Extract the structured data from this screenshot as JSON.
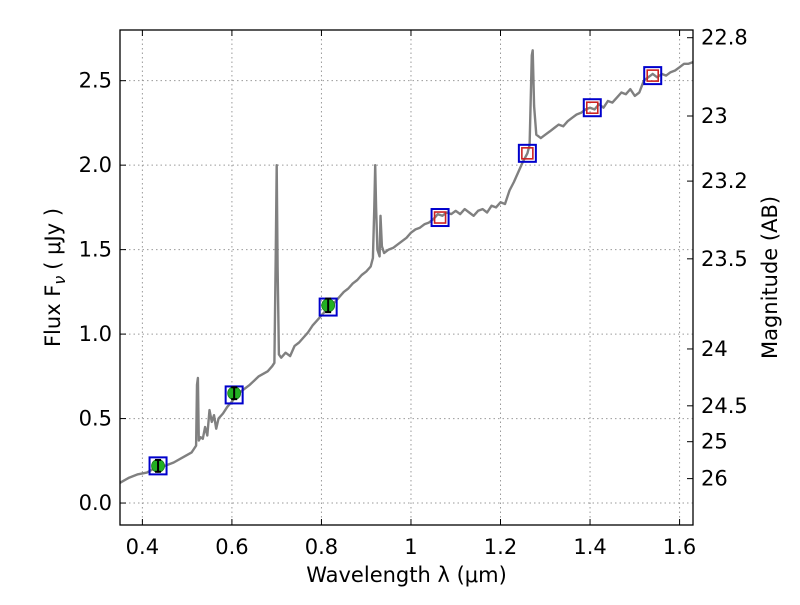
{
  "chart_data": {
    "type": "line",
    "xlabel": "Wavelength  λ (μm)",
    "ylabel_left": "Flux  F",
    "ylabel_left_sub": "ν",
    "ylabel_left_unit": "( μJy )",
    "ylabel_right": "Magnitude (AB)",
    "xlim": [
      0.35,
      1.63
    ],
    "ylim": [
      -0.13,
      2.8
    ],
    "x_ticks": [
      {
        "value": 0.4,
        "label": "0.4"
      },
      {
        "value": 0.6,
        "label": "0.6"
      },
      {
        "value": 0.8,
        "label": "0.8"
      },
      {
        "value": 1.0,
        "label": "1"
      },
      {
        "value": 1.2,
        "label": "1.2"
      },
      {
        "value": 1.4,
        "label": "1.4"
      },
      {
        "value": 1.6,
        "label": "1.6"
      }
    ],
    "y_ticks": [
      {
        "value": 0.0,
        "label": "0.0"
      },
      {
        "value": 0.5,
        "label": "0.5"
      },
      {
        "value": 1.0,
        "label": "1.0"
      },
      {
        "value": 1.5,
        "label": "1.5"
      },
      {
        "value": 2.0,
        "label": "2.0"
      },
      {
        "value": 2.5,
        "label": "2.5"
      }
    ],
    "right_ticks": [
      {
        "value": 22.8,
        "label": "22.8"
      },
      {
        "value": 23.0,
        "label": "23"
      },
      {
        "value": 23.2,
        "label": "23.2"
      },
      {
        "value": 23.5,
        "label": "23.5"
      },
      {
        "value": 24.0,
        "label": "24"
      },
      {
        "value": 24.5,
        "label": "24.5"
      },
      {
        "value": 25.0,
        "label": "25"
      },
      {
        "value": 26.0,
        "label": "26"
      }
    ],
    "grid": true,
    "spectrum": {
      "color": "#808080",
      "points": [
        [
          0.35,
          0.12
        ],
        [
          0.37,
          0.15
        ],
        [
          0.39,
          0.17
        ],
        [
          0.41,
          0.18
        ],
        [
          0.43,
          0.21
        ],
        [
          0.45,
          0.22
        ],
        [
          0.47,
          0.24
        ],
        [
          0.49,
          0.27
        ],
        [
          0.51,
          0.3
        ],
        [
          0.515,
          0.32
        ],
        [
          0.52,
          0.34
        ],
        [
          0.522,
          0.7
        ],
        [
          0.524,
          0.74
        ],
        [
          0.526,
          0.37
        ],
        [
          0.53,
          0.39
        ],
        [
          0.535,
          0.38
        ],
        [
          0.54,
          0.45
        ],
        [
          0.545,
          0.4
        ],
        [
          0.55,
          0.55
        ],
        [
          0.555,
          0.48
        ],
        [
          0.56,
          0.52
        ],
        [
          0.565,
          0.44
        ],
        [
          0.57,
          0.5
        ],
        [
          0.58,
          0.53
        ],
        [
          0.59,
          0.57
        ],
        [
          0.6,
          0.6
        ],
        [
          0.61,
          0.64
        ],
        [
          0.62,
          0.66
        ],
        [
          0.64,
          0.7
        ],
        [
          0.66,
          0.75
        ],
        [
          0.68,
          0.78
        ],
        [
          0.69,
          0.81
        ],
        [
          0.695,
          0.83
        ],
        [
          0.698,
          1.5
        ],
        [
          0.7,
          2.0
        ],
        [
          0.702,
          1.4
        ],
        [
          0.705,
          0.88
        ],
        [
          0.71,
          0.86
        ],
        [
          0.72,
          0.89
        ],
        [
          0.73,
          0.87
        ],
        [
          0.74,
          0.93
        ],
        [
          0.75,
          0.95
        ],
        [
          0.76,
          0.98
        ],
        [
          0.77,
          1.01
        ],
        [
          0.78,
          1.05
        ],
        [
          0.79,
          1.08
        ],
        [
          0.8,
          1.11
        ],
        [
          0.81,
          1.14
        ],
        [
          0.82,
          1.16
        ],
        [
          0.83,
          1.19
        ],
        [
          0.84,
          1.22
        ],
        [
          0.85,
          1.25
        ],
        [
          0.86,
          1.27
        ],
        [
          0.87,
          1.3
        ],
        [
          0.88,
          1.32
        ],
        [
          0.89,
          1.35
        ],
        [
          0.9,
          1.37
        ],
        [
          0.91,
          1.4
        ],
        [
          0.915,
          1.45
        ],
        [
          0.918,
          1.75
        ],
        [
          0.92,
          2.0
        ],
        [
          0.922,
          1.75
        ],
        [
          0.925,
          1.5
        ],
        [
          0.93,
          1.46
        ],
        [
          0.932,
          1.7
        ],
        [
          0.935,
          1.52
        ],
        [
          0.94,
          1.48
        ],
        [
          0.95,
          1.5
        ],
        [
          0.96,
          1.51
        ],
        [
          0.97,
          1.53
        ],
        [
          0.98,
          1.55
        ],
        [
          0.99,
          1.57
        ],
        [
          1.0,
          1.6
        ],
        [
          1.01,
          1.62
        ],
        [
          1.02,
          1.63
        ],
        [
          1.03,
          1.65
        ],
        [
          1.04,
          1.66
        ],
        [
          1.05,
          1.68
        ],
        [
          1.06,
          1.71
        ],
        [
          1.07,
          1.7
        ],
        [
          1.08,
          1.72
        ],
        [
          1.09,
          1.71
        ],
        [
          1.1,
          1.73
        ],
        [
          1.11,
          1.71
        ],
        [
          1.12,
          1.74
        ],
        [
          1.13,
          1.72
        ],
        [
          1.14,
          1.7
        ],
        [
          1.15,
          1.73
        ],
        [
          1.16,
          1.74
        ],
        [
          1.17,
          1.72
        ],
        [
          1.18,
          1.76
        ],
        [
          1.19,
          1.75
        ],
        [
          1.2,
          1.78
        ],
        [
          1.21,
          1.77
        ],
        [
          1.22,
          1.85
        ],
        [
          1.23,
          1.9
        ],
        [
          1.24,
          1.96
        ],
        [
          1.25,
          2.02
        ],
        [
          1.26,
          2.07
        ],
        [
          1.265,
          2.12
        ],
        [
          1.27,
          2.65
        ],
        [
          1.272,
          2.68
        ],
        [
          1.275,
          2.35
        ],
        [
          1.28,
          2.18
        ],
        [
          1.29,
          2.16
        ],
        [
          1.3,
          2.18
        ],
        [
          1.31,
          2.2
        ],
        [
          1.32,
          2.22
        ],
        [
          1.33,
          2.24
        ],
        [
          1.34,
          2.23
        ],
        [
          1.35,
          2.26
        ],
        [
          1.36,
          2.28
        ],
        [
          1.37,
          2.3
        ],
        [
          1.38,
          2.31
        ],
        [
          1.39,
          2.33
        ],
        [
          1.4,
          2.34
        ],
        [
          1.41,
          2.33
        ],
        [
          1.42,
          2.36
        ],
        [
          1.43,
          2.34
        ],
        [
          1.44,
          2.38
        ],
        [
          1.45,
          2.37
        ],
        [
          1.46,
          2.4
        ],
        [
          1.47,
          2.43
        ],
        [
          1.48,
          2.42
        ],
        [
          1.49,
          2.45
        ],
        [
          1.5,
          2.41
        ],
        [
          1.51,
          2.43
        ],
        [
          1.52,
          2.5
        ],
        [
          1.53,
          2.52
        ],
        [
          1.54,
          2.54
        ],
        [
          1.55,
          2.52
        ],
        [
          1.56,
          2.54
        ],
        [
          1.57,
          2.53
        ],
        [
          1.58,
          2.55
        ],
        [
          1.59,
          2.56
        ],
        [
          1.6,
          2.58
        ],
        [
          1.61,
          2.6
        ],
        [
          1.62,
          2.6
        ],
        [
          1.63,
          2.61
        ]
      ]
    },
    "model_boxes": {
      "edge_color": "#0000cc",
      "points": [
        {
          "x": 0.435,
          "y": 0.22
        },
        {
          "x": 0.605,
          "y": 0.64
        },
        {
          "x": 0.815,
          "y": 1.16
        },
        {
          "x": 1.065,
          "y": 1.69
        },
        {
          "x": 1.26,
          "y": 2.07
        },
        {
          "x": 1.405,
          "y": 2.34
        },
        {
          "x": 1.54,
          "y": 2.53
        }
      ]
    },
    "detections": {
      "color": "#22b022",
      "points": [
        {
          "x": 0.435,
          "y": 0.22,
          "err": 0.035
        },
        {
          "x": 0.605,
          "y": 0.65,
          "err": 0.035
        },
        {
          "x": 0.815,
          "y": 1.17,
          "err": 0.04
        }
      ]
    },
    "upper_limits": {
      "color": "#cc2222",
      "points": [
        {
          "x": 1.065,
          "y": 1.69
        },
        {
          "x": 1.26,
          "y": 2.07
        },
        {
          "x": 1.405,
          "y": 2.34
        },
        {
          "x": 1.54,
          "y": 2.53
        }
      ]
    }
  }
}
